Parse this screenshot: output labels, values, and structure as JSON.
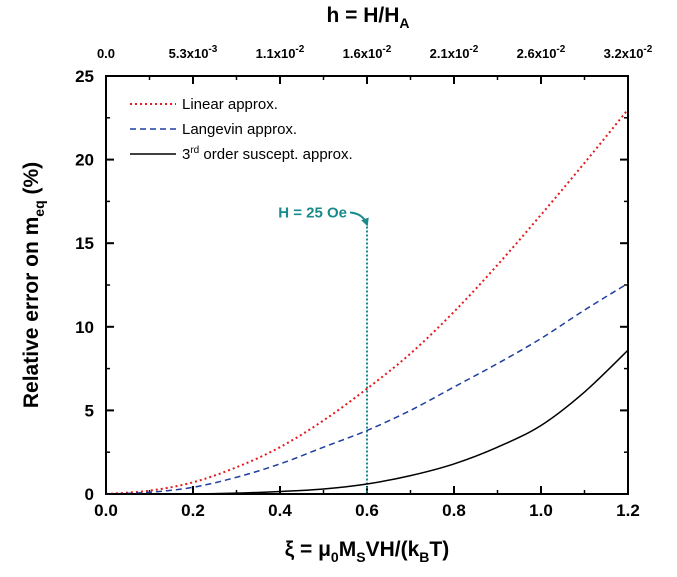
{
  "chart_data": {
    "type": "line",
    "xlabel": {
      "prefix": "ξ = μ",
      "sub0": "0",
      "mid1": "M",
      "sub1": "S",
      "mid2": "VH/(k",
      "sub2": "B",
      "suffix": "T)"
    },
    "ylabel": {
      "main": "Relative error on  m",
      "sub": "eq",
      "unit": "  (%)"
    },
    "top_axis_label": {
      "main": "h = H/H",
      "sub": "A"
    },
    "xlim": [
      0.0,
      1.2
    ],
    "ylim": [
      0,
      25
    ],
    "x_ticks": [
      "0.0",
      "0.2",
      "0.4",
      "0.6",
      "0.8",
      "1.0",
      "1.2"
    ],
    "y_ticks": [
      "0",
      "5",
      "10",
      "15",
      "20",
      "25"
    ],
    "top_ticks": [
      {
        "mantissa": "0.0",
        "exponent": ""
      },
      {
        "mantissa": "5.3x10",
        "exponent": "-3"
      },
      {
        "mantissa": "1.1x10",
        "exponent": "-2"
      },
      {
        "mantissa": "1.6x10",
        "exponent": "-2"
      },
      {
        "mantissa": "2.1x10",
        "exponent": "-2"
      },
      {
        "mantissa": "2.6x10",
        "exponent": "-2"
      },
      {
        "mantissa": "3.2x10",
        "exponent": "-2"
      }
    ],
    "series": [
      {
        "name": "Linear approx.",
        "color": "#e41a1c",
        "style": "dotted",
        "x": [
          0.0,
          0.1,
          0.2,
          0.3,
          0.4,
          0.5,
          0.6,
          0.7,
          0.8,
          0.9,
          1.0,
          1.1,
          1.2
        ],
        "y": [
          0.0,
          0.2,
          0.7,
          1.6,
          2.8,
          4.4,
          6.3,
          8.4,
          10.9,
          13.7,
          16.7,
          19.8,
          23.0
        ]
      },
      {
        "name": "Langevin approx.",
        "color": "#1f3f9f",
        "style": "dashed",
        "x": [
          0.0,
          0.1,
          0.2,
          0.3,
          0.4,
          0.5,
          0.6,
          0.7,
          0.8,
          0.9,
          1.0,
          1.1,
          1.2
        ],
        "y": [
          0.0,
          0.1,
          0.4,
          1.0,
          1.8,
          2.8,
          3.8,
          5.0,
          6.4,
          7.8,
          9.3,
          11.0,
          12.6
        ]
      },
      {
        "name_parts": {
          "prefix": "3",
          "sup": "rd",
          "suffix": " order suscept. approx."
        },
        "color": "#000000",
        "style": "solid",
        "x": [
          0.0,
          0.1,
          0.2,
          0.3,
          0.4,
          0.5,
          0.6,
          0.7,
          0.8,
          0.9,
          1.0,
          1.1,
          1.2
        ],
        "y": [
          0.0,
          0.0,
          0.0,
          0.05,
          0.15,
          0.3,
          0.6,
          1.1,
          1.8,
          2.8,
          4.1,
          6.1,
          8.6
        ]
      }
    ],
    "annotation": {
      "text": "H = 25 Oe",
      "color": "#1a8a8a",
      "x": 0.6,
      "y_top": 16,
      "y_bottom": 0
    },
    "legend_position": "top-left"
  }
}
